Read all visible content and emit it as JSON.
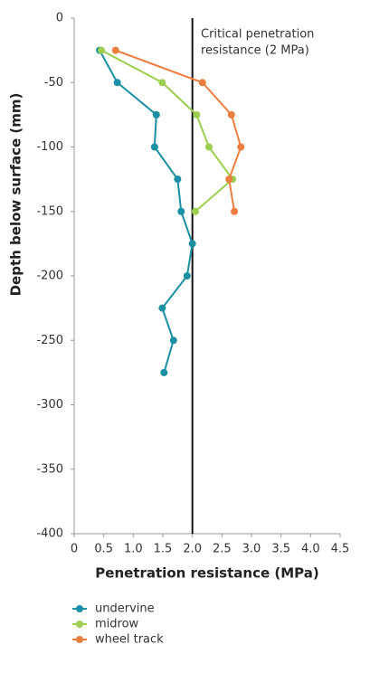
{
  "chart_data": {
    "type": "line",
    "xlabel": "Penetration resistance (MPa)",
    "ylabel": "Depth below surface (mm)",
    "annotation": [
      "Critical penetration",
      "resistance (2 MPa)"
    ],
    "reference_x": 2,
    "xlim": [
      0,
      4.5
    ],
    "xticks": [
      0,
      0.5,
      {
        "value": 1,
        "label": "1.0"
      },
      1.5,
      {
        "value": 2,
        "label": "2.0"
      },
      2.5,
      {
        "value": 3,
        "label": "3.0"
      },
      3.5,
      {
        "value": 4,
        "label": "4.0"
      },
      4.5
    ],
    "ylim": [
      -400,
      0
    ],
    "yticks": [
      0,
      -50,
      -100,
      -150,
      -200,
      -250,
      -300,
      -350,
      -400
    ],
    "series": [
      {
        "name": "undervine",
        "color": "#1b8fa3",
        "x": [
          0.43,
          0.73,
          1.39,
          1.36,
          1.75,
          1.81,
          2.0,
          1.91,
          1.49,
          1.68,
          1.52
        ],
        "values": [
          -25,
          -50,
          -75,
          -100,
          -125,
          -150,
          -175,
          -200,
          -225,
          -250,
          -275
        ]
      },
      {
        "name": "midrow",
        "color": "#9ccf4f",
        "x": [
          0.46,
          1.49,
          2.07,
          2.28,
          2.68,
          2.05
        ],
        "values": [
          -25,
          -50,
          -75,
          -100,
          -125,
          -150
        ]
      },
      {
        "name": "wheel track",
        "color": "#ec7f3f",
        "x": [
          0.7,
          2.17,
          2.66,
          2.82,
          2.62,
          2.71
        ],
        "values": [
          -25,
          -50,
          -75,
          -100,
          -125,
          -150
        ]
      }
    ]
  }
}
